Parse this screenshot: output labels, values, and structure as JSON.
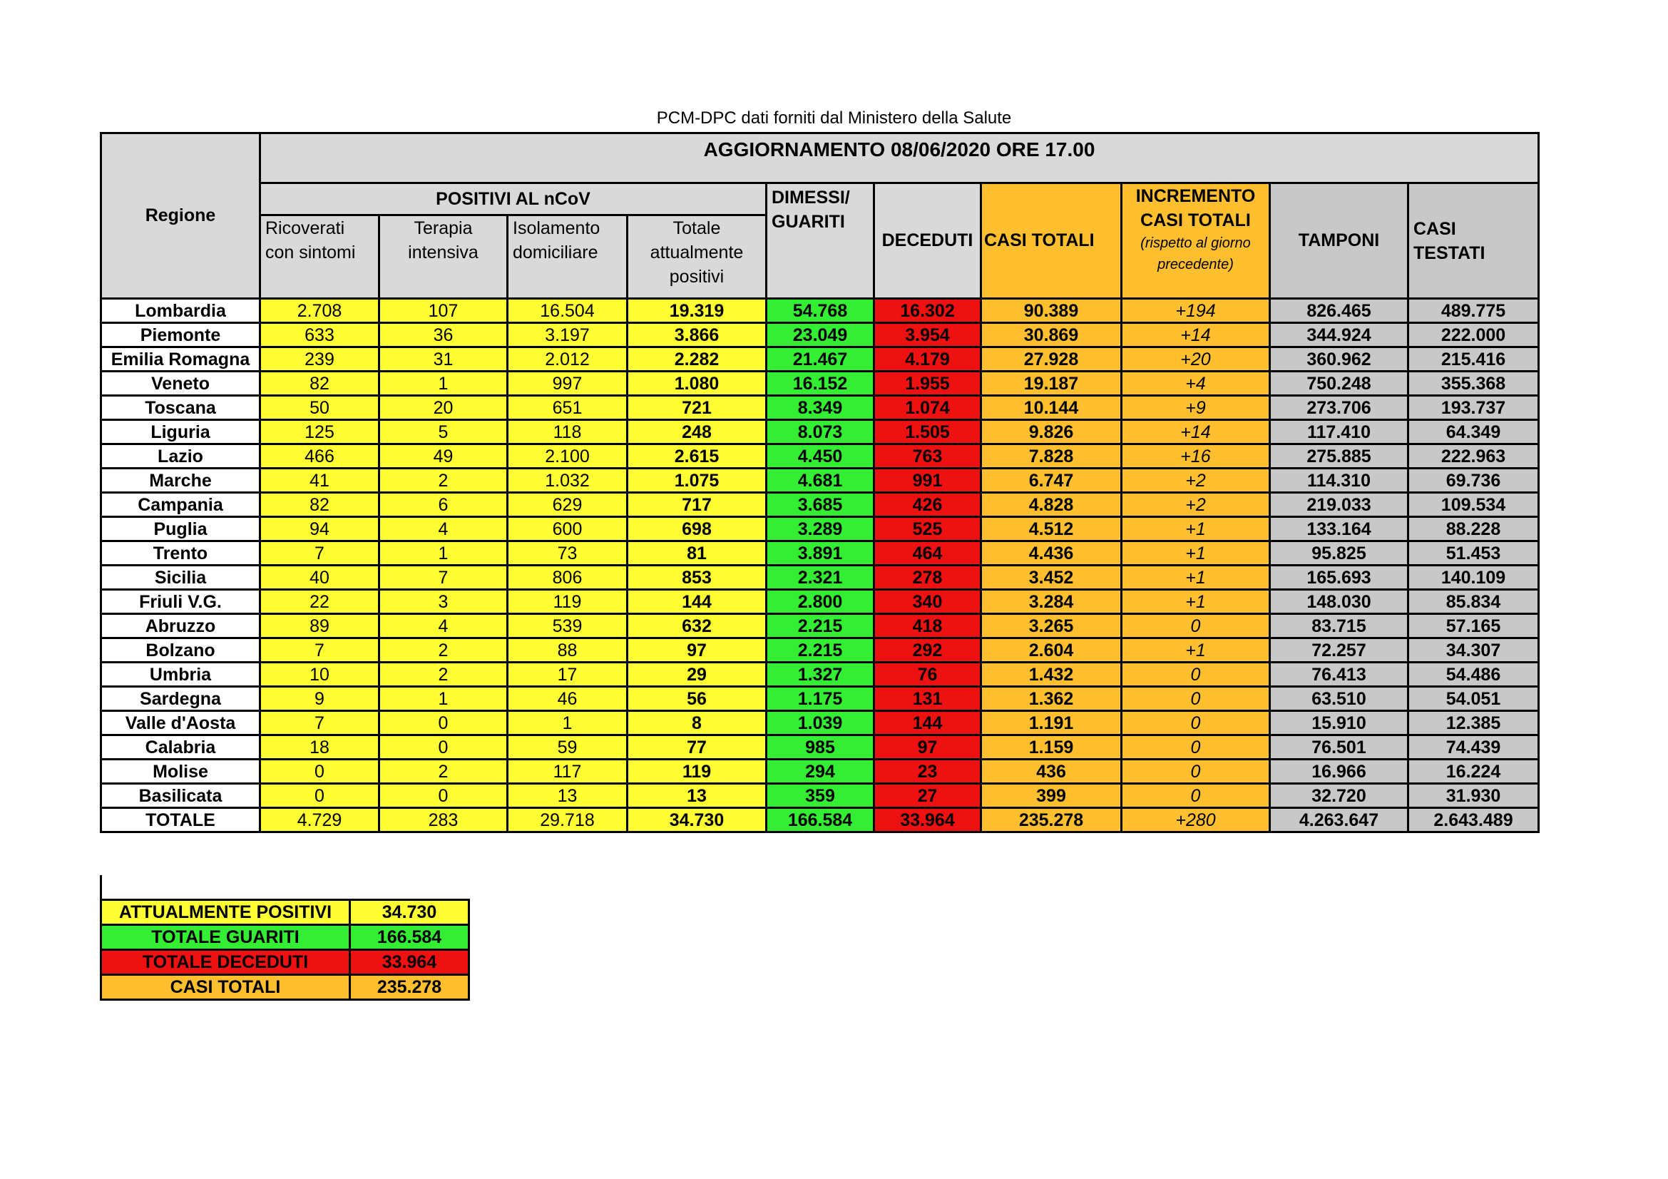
{
  "caption": "PCM-DPC dati forniti dal Ministero della Salute",
  "title": "AGGIORNAMENTO 08/06/2020 ORE 17.00",
  "headers": {
    "regione": "Regione",
    "positivi_group": "POSITIVI AL nCoV",
    "ricoverati": [
      "Ricoverati",
      "con sintomi"
    ],
    "terapia": [
      "Terapia",
      "intensiva"
    ],
    "isolamento": [
      "Isolamento",
      "domiciliare"
    ],
    "totale_pos": [
      "Totale",
      "attualmente",
      "positivi"
    ],
    "dimessi": [
      "DIMESSI/",
      "GUARITI"
    ],
    "deceduti": "DECEDUTI",
    "casi_totali": "CASI TOTALI",
    "incremento": [
      "INCREMENTO",
      "CASI  TOTALI",
      "(rispetto al giorno",
      "precedente)"
    ],
    "tamponi": "TAMPONI",
    "casi_testati": [
      "CASI",
      "TESTATI"
    ]
  },
  "colors": {
    "positivi": "#ffff33",
    "guariti": "#33ee33",
    "deceduti": "#ee1111",
    "casi_totali": "#ffbf2f",
    "tamponi": "#c8c8c8",
    "header": "#d9d9d9"
  },
  "rows": [
    [
      "Lombardia",
      "2.708",
      "107",
      "16.504",
      "19.319",
      "54.768",
      "16.302",
      "90.389",
      "+194",
      "826.465",
      "489.775"
    ],
    [
      "Piemonte",
      "633",
      "36",
      "3.197",
      "3.866",
      "23.049",
      "3.954",
      "30.869",
      "+14",
      "344.924",
      "222.000"
    ],
    [
      "Emilia Romagna",
      "239",
      "31",
      "2.012",
      "2.282",
      "21.467",
      "4.179",
      "27.928",
      "+20",
      "360.962",
      "215.416"
    ],
    [
      "Veneto",
      "82",
      "1",
      "997",
      "1.080",
      "16.152",
      "1.955",
      "19.187",
      "+4",
      "750.248",
      "355.368"
    ],
    [
      "Toscana",
      "50",
      "20",
      "651",
      "721",
      "8.349",
      "1.074",
      "10.144",
      "+9",
      "273.706",
      "193.737"
    ],
    [
      "Liguria",
      "125",
      "5",
      "118",
      "248",
      "8.073",
      "1.505",
      "9.826",
      "+14",
      "117.410",
      "64.349"
    ],
    [
      "Lazio",
      "466",
      "49",
      "2.100",
      "2.615",
      "4.450",
      "763",
      "7.828",
      "+16",
      "275.885",
      "222.963"
    ],
    [
      "Marche",
      "41",
      "2",
      "1.032",
      "1.075",
      "4.681",
      "991",
      "6.747",
      "+2",
      "114.310",
      "69.736"
    ],
    [
      "Campania",
      "82",
      "6",
      "629",
      "717",
      "3.685",
      "426",
      "4.828",
      "+2",
      "219.033",
      "109.534"
    ],
    [
      "Puglia",
      "94",
      "4",
      "600",
      "698",
      "3.289",
      "525",
      "4.512",
      "+1",
      "133.164",
      "88.228"
    ],
    [
      "Trento",
      "7",
      "1",
      "73",
      "81",
      "3.891",
      "464",
      "4.436",
      "+1",
      "95.825",
      "51.453"
    ],
    [
      "Sicilia",
      "40",
      "7",
      "806",
      "853",
      "2.321",
      "278",
      "3.452",
      "+1",
      "165.693",
      "140.109"
    ],
    [
      "Friuli V.G.",
      "22",
      "3",
      "119",
      "144",
      "2.800",
      "340",
      "3.284",
      "+1",
      "148.030",
      "85.834"
    ],
    [
      "Abruzzo",
      "89",
      "4",
      "539",
      "632",
      "2.215",
      "418",
      "3.265",
      "0",
      "83.715",
      "57.165"
    ],
    [
      "Bolzano",
      "7",
      "2",
      "88",
      "97",
      "2.215",
      "292",
      "2.604",
      "+1",
      "72.257",
      "34.307"
    ],
    [
      "Umbria",
      "10",
      "2",
      "17",
      "29",
      "1.327",
      "76",
      "1.432",
      "0",
      "76.413",
      "54.486"
    ],
    [
      "Sardegna",
      "9",
      "1",
      "46",
      "56",
      "1.175",
      "131",
      "1.362",
      "0",
      "63.510",
      "54.051"
    ],
    [
      "Valle d'Aosta",
      "7",
      "0",
      "1",
      "8",
      "1.039",
      "144",
      "1.191",
      "0",
      "15.910",
      "12.385"
    ],
    [
      "Calabria",
      "18",
      "0",
      "59",
      "77",
      "985",
      "97",
      "1.159",
      "0",
      "76.501",
      "74.439"
    ],
    [
      "Molise",
      "0",
      "2",
      "117",
      "119",
      "294",
      "23",
      "436",
      "0",
      "16.966",
      "16.224"
    ],
    [
      "Basilicata",
      "0",
      "0",
      "13",
      "13",
      "359",
      "27",
      "399",
      "0",
      "32.720",
      "31.930"
    ]
  ],
  "totale": [
    "TOTALE",
    "4.729",
    "283",
    "29.718",
    "34.730",
    "166.584",
    "33.964",
    "235.278",
    "+280",
    "4.263.647",
    "2.643.489"
  ],
  "summary": [
    {
      "label": "ATTUALMENTE POSITIVI",
      "value": "34.730",
      "color": "#ffff33"
    },
    {
      "label": "TOTALE GUARITI",
      "value": "166.584",
      "color": "#33ee33"
    },
    {
      "label": "TOTALE DECEDUTI",
      "value": "33.964",
      "color": "#ee1111"
    },
    {
      "label": "CASI TOTALI",
      "value": "235.278",
      "color": "#ffbf2f"
    }
  ]
}
